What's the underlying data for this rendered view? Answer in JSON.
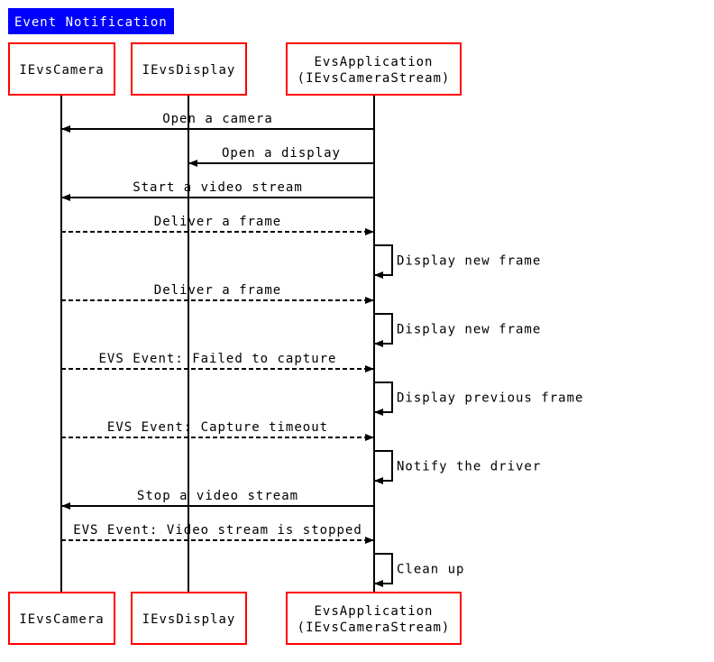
{
  "title": "Event Notification",
  "colors": {
    "title_bg": "#0000ff",
    "title_text": "#ffffff",
    "participant_border": "#ff0000",
    "line": "#000000"
  },
  "participants": [
    {
      "id": "cam",
      "lines": [
        "IEvsCamera"
      ]
    },
    {
      "id": "disp",
      "lines": [
        "IEvsDisplay"
      ]
    },
    {
      "id": "app",
      "lines": [
        "EvsApplication",
        "(IEvsCameraStream)"
      ]
    }
  ],
  "messages": [
    {
      "from": "app",
      "to": "cam",
      "style": "solid",
      "label": "Open a camera"
    },
    {
      "from": "app",
      "to": "disp",
      "style": "solid",
      "label": "Open a display"
    },
    {
      "from": "app",
      "to": "cam",
      "style": "solid",
      "label": "Start a video stream"
    },
    {
      "from": "cam",
      "to": "app",
      "style": "dashed",
      "label": "Deliver a frame"
    },
    {
      "from": "app",
      "to": "app",
      "style": "self",
      "label": "Display new frame"
    },
    {
      "from": "cam",
      "to": "app",
      "style": "dashed",
      "label": "Deliver a frame"
    },
    {
      "from": "app",
      "to": "app",
      "style": "self",
      "label": "Display new frame"
    },
    {
      "from": "cam",
      "to": "app",
      "style": "dashed",
      "label": "EVS Event: Failed to capture"
    },
    {
      "from": "app",
      "to": "app",
      "style": "self",
      "label": "Display previous frame"
    },
    {
      "from": "cam",
      "to": "app",
      "style": "dashed",
      "label": "EVS Event: Capture timeout"
    },
    {
      "from": "app",
      "to": "app",
      "style": "self",
      "label": "Notify the driver"
    },
    {
      "from": "app",
      "to": "cam",
      "style": "solid",
      "label": "Stop a video stream"
    },
    {
      "from": "cam",
      "to": "app",
      "style": "dashed",
      "label": "EVS Event: Video stream is stopped"
    },
    {
      "from": "app",
      "to": "app",
      "style": "self",
      "label": "Clean up"
    }
  ]
}
